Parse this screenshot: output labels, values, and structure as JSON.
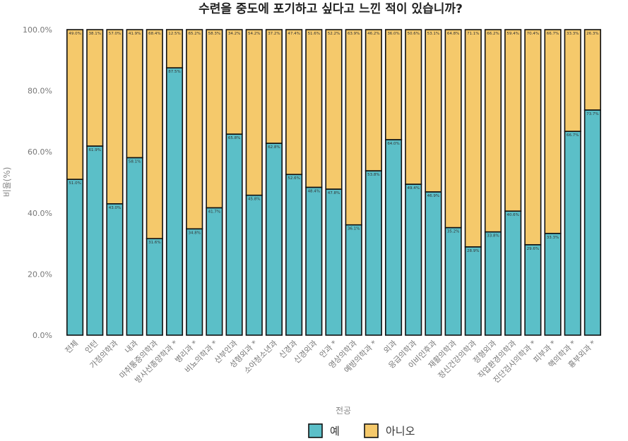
{
  "chart_data": {
    "type": "bar",
    "stacked": true,
    "title": "수련을 중도에 포기하고 싶다고 느낀 적이 있습니까?",
    "xlabel": "전공",
    "ylabel": "비율(%)",
    "ylim": [
      0,
      100
    ],
    "yticks": [
      "0.0%",
      "20.0%",
      "40.0%",
      "60.0%",
      "80.0%",
      "100.0%"
    ],
    "grid": false,
    "legend_position": "bottom",
    "categories": [
      "전체",
      "인턴",
      "가정의학과",
      "내과",
      "마취통증의학과",
      "방사선종양학과 *",
      "병리과 *",
      "비뇨의학과 *",
      "산부인과",
      "성형외과 *",
      "소아청소년과",
      "신경과",
      "신경외과",
      "안과 *",
      "영상의학과",
      "예방의학과 *",
      "외과",
      "응급의학과",
      "이비인후과",
      "재활의학과",
      "정신건강의학과",
      "정형외과",
      "직업환경의학과",
      "진단검사의학과 *",
      "피부과 *",
      "핵의학과 *",
      "흉부외과 *"
    ],
    "series": [
      {
        "name": "예",
        "color": "#5bbfc8",
        "values": [
          51.0,
          61.9,
          43.0,
          58.1,
          31.6,
          87.5,
          34.8,
          41.7,
          65.8,
          45.8,
          62.8,
          52.6,
          48.4,
          47.8,
          36.1,
          53.8,
          64.0,
          49.4,
          46.9,
          35.2,
          28.9,
          33.8,
          40.6,
          29.6,
          33.3,
          66.7,
          73.7
        ],
        "labels": [
          "51.0%",
          "61.9%",
          "43.0%",
          "58.1%",
          "31.6%",
          "87.5%",
          "34.8%",
          "41.7%",
          "65.8%",
          "45.8%",
          "62.8%",
          "52.6%",
          "48.4%",
          "47.8%",
          "36.1%",
          "53.8%",
          "64.0%",
          "49.4%",
          "46.9%",
          "35.2%",
          "28.9%",
          "33.8%",
          "40.6%",
          "29.6%",
          "33.3%",
          "66.7%",
          "73.7%"
        ]
      },
      {
        "name": "아니오",
        "color": "#f5c96b",
        "values": [
          49.0,
          38.1,
          57.0,
          41.9,
          68.4,
          12.5,
          65.2,
          58.3,
          34.2,
          54.2,
          37.2,
          47.4,
          51.6,
          52.2,
          63.9,
          46.2,
          36.0,
          50.6,
          53.1,
          64.8,
          71.1,
          66.2,
          59.4,
          70.4,
          66.7,
          33.3,
          26.3
        ],
        "labels": [
          "49.0%",
          "38.1%",
          "57.0%",
          "41.9%",
          "68.4%",
          "12.5%",
          "65.2%",
          "58.3%",
          "34.2%",
          "54.2%",
          "37.2%",
          "47.4%",
          "51.6%",
          "52.2%",
          "63.9%",
          "46.2%",
          "36.0%",
          "50.6%",
          "53.1%",
          "64.8%",
          "71.1%",
          "66.2%",
          "59.4%",
          "70.4%",
          "66.7%",
          "33.3%",
          "26.3%"
        ]
      }
    ]
  }
}
